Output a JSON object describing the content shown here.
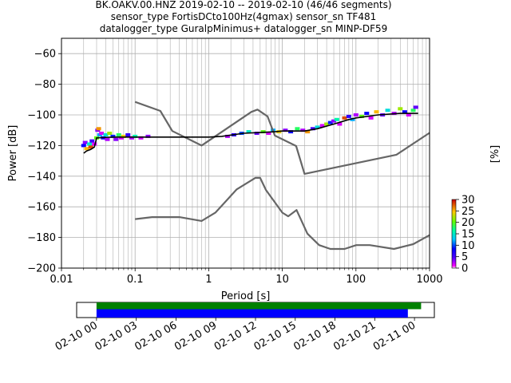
{
  "chart_data": {
    "type": "heatmap",
    "title_lines": [
      "BK.OAKV.00.HNZ   2019-02-10 -- 2019-02-10  (46/46 segments)",
      "sensor_type FortisDCto100Hz(4gmax) sensor_sn TF481",
      "datalogger_type GuralpMinimus+ datalogger_sn MINP-DF59"
    ],
    "xlabel": "Period [s]",
    "ylabel": "Power [dB]",
    "xscale": "log",
    "xlim": [
      0.01,
      1000
    ],
    "ylim": [
      -200,
      -50
    ],
    "grid": true,
    "x_ticks": [
      {
        "value": 0.01,
        "label": "0.01"
      },
      {
        "value": 0.1,
        "label": "0.1"
      },
      {
        "value": 1,
        "label": "1"
      },
      {
        "value": 10,
        "label": "10"
      },
      {
        "value": 100,
        "label": "100"
      },
      {
        "value": 1000,
        "label": "1000"
      }
    ],
    "y_ticks": [
      {
        "value": -60,
        "label": "−60"
      },
      {
        "value": -80,
        "label": "−80"
      },
      {
        "value": -100,
        "label": "−100"
      },
      {
        "value": -120,
        "label": "−120"
      },
      {
        "value": -140,
        "label": "−140"
      },
      {
        "value": -160,
        "label": "−160"
      },
      {
        "value": -180,
        "label": "−180"
      },
      {
        "value": -200,
        "label": "−200"
      }
    ],
    "colorbar": {
      "label": "[%]",
      "range": [
        0,
        30
      ],
      "ticks": [
        {
          "value": 0,
          "label": "0"
        },
        {
          "value": 5,
          "label": "5"
        },
        {
          "value": 10,
          "label": "10"
        },
        {
          "value": 15,
          "label": "15"
        },
        {
          "value": 20,
          "label": "20"
        },
        {
          "value": 25,
          "label": "25"
        },
        {
          "value": 30,
          "label": "30"
        }
      ]
    },
    "noise_model_high": [
      [
        0.1,
        -91.5
      ],
      [
        0.22,
        -97.4
      ],
      [
        0.32,
        -110.5
      ],
      [
        0.8,
        -120
      ],
      [
        3.8,
        -98
      ],
      [
        4.6,
        -96.5
      ],
      [
        6.3,
        -101
      ],
      [
        7.9,
        -113.5
      ],
      [
        15.4,
        -120.3
      ],
      [
        20,
        -138.5
      ],
      [
        354.8,
        -126
      ],
      [
        10000,
        -80
      ]
    ],
    "noise_model_low": [
      [
        0.1,
        -168
      ],
      [
        0.17,
        -166.7
      ],
      [
        0.4,
        -166.7
      ],
      [
        0.8,
        -169.2
      ],
      [
        1.24,
        -163.7
      ],
      [
        2.4,
        -148.6
      ],
      [
        4.3,
        -141.1
      ],
      [
        5,
        -141.1
      ],
      [
        6,
        -149
      ],
      [
        10,
        -163.8
      ],
      [
        12,
        -166.2
      ],
      [
        15.6,
        -162.1
      ],
      [
        21.9,
        -177.5
      ],
      [
        31.6,
        -185
      ],
      [
        45,
        -187.5
      ],
      [
        70,
        -187.5
      ],
      [
        101,
        -185
      ],
      [
        154,
        -185
      ],
      [
        328,
        -187.5
      ],
      [
        600,
        -184.4
      ],
      [
        10000,
        -151.9
      ]
    ],
    "mode_curve": [
      [
        0.02,
        -125
      ],
      [
        0.022,
        -123.5
      ],
      [
        0.025,
        -122.5
      ],
      [
        0.028,
        -121
      ],
      [
        0.03,
        -115
      ],
      [
        0.05,
        -114.5
      ],
      [
        0.1,
        -114.5
      ],
      [
        0.5,
        -114.5
      ],
      [
        1.0,
        -114.5
      ],
      [
        1.5,
        -114
      ],
      [
        3,
        -112
      ],
      [
        5,
        -111.5
      ],
      [
        8,
        -111
      ],
      [
        10,
        -110.5
      ],
      [
        20,
        -110.5
      ],
      [
        30,
        -109
      ],
      [
        50,
        -106
      ],
      [
        80,
        -103
      ],
      [
        100,
        -102
      ],
      [
        200,
        -100
      ],
      [
        400,
        -99
      ],
      [
        700,
        -99
      ]
    ],
    "scatter_cells": [
      [
        0.02,
        -120,
        8
      ],
      [
        0.021,
        -118,
        3
      ],
      [
        0.022,
        -122,
        25
      ],
      [
        0.024,
        -119,
        15
      ],
      [
        0.025,
        -121,
        28
      ],
      [
        0.026,
        -117,
        5
      ],
      [
        0.028,
        -119,
        1
      ],
      [
        0.03,
        -115,
        20
      ],
      [
        0.031,
        -110,
        3
      ],
      [
        0.032,
        -109,
        26
      ],
      [
        0.033,
        -113,
        12
      ],
      [
        0.035,
        -112,
        1
      ],
      [
        0.037,
        -115,
        7
      ],
      [
        0.04,
        -113,
        14
      ],
      [
        0.042,
        -116,
        2
      ],
      [
        0.045,
        -112,
        22
      ],
      [
        0.05,
        -114,
        9
      ],
      [
        0.055,
        -116,
        3
      ],
      [
        0.06,
        -113,
        18
      ],
      [
        0.065,
        -115,
        1
      ],
      [
        0.07,
        -114,
        24
      ],
      [
        0.08,
        -113,
        6
      ],
      [
        0.09,
        -115,
        2
      ],
      [
        0.1,
        -114,
        16
      ],
      [
        0.12,
        -115,
        1
      ],
      [
        0.15,
        -114,
        3
      ],
      [
        1.8,
        -114,
        2
      ],
      [
        2.2,
        -113,
        6
      ],
      [
        2.8,
        -112,
        10
      ],
      [
        3.5,
        -111,
        15
      ],
      [
        4.5,
        -112,
        4
      ],
      [
        5.5,
        -111,
        20
      ],
      [
        6.5,
        -112,
        1
      ],
      [
        7.5,
        -110,
        12
      ],
      [
        9,
        -111,
        24
      ],
      [
        11,
        -110,
        3
      ],
      [
        13,
        -111,
        8
      ],
      [
        16,
        -109,
        18
      ],
      [
        19,
        -110,
        2
      ],
      [
        22,
        -111,
        26
      ],
      [
        26,
        -109,
        5
      ],
      [
        30,
        -108,
        14
      ],
      [
        35,
        -107,
        1
      ],
      [
        40,
        -106,
        22
      ],
      [
        45,
        -105,
        9
      ],
      [
        50,
        -104,
        3
      ],
      [
        55,
        -103,
        16
      ],
      [
        60,
        -106,
        1
      ],
      [
        70,
        -102,
        28
      ],
      [
        80,
        -101,
        6
      ],
      [
        90,
        -103,
        12
      ],
      [
        100,
        -100,
        2
      ],
      [
        120,
        -101,
        20
      ],
      [
        140,
        -99,
        8
      ],
      [
        160,
        -102,
        1
      ],
      [
        190,
        -98,
        25
      ],
      [
        230,
        -100,
        4
      ],
      [
        270,
        -97,
        14
      ],
      [
        330,
        -99,
        2
      ],
      [
        400,
        -96,
        22
      ],
      [
        460,
        -98,
        8
      ],
      [
        520,
        -100,
        1
      ],
      [
        600,
        -97,
        18
      ],
      [
        650,
        -95,
        4
      ]
    ],
    "time_axis": {
      "ticks": [
        "02-10 00",
        "02-10 03",
        "02-10 06",
        "02-10 09",
        "02-10 12",
        "02-10 15",
        "02-10 18",
        "02-10 21",
        "02-11 00"
      ],
      "hours_range": [
        -1.5,
        25.5
      ],
      "green_bar": [
        0,
        24.5
      ],
      "blue_bar": [
        0,
        23.5
      ],
      "green_color": "#008000",
      "blue_color": "#0000ff"
    }
  }
}
